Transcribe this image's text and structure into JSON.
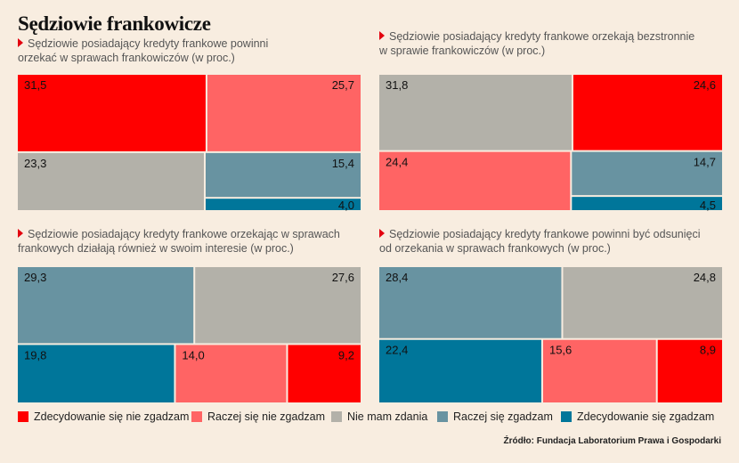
{
  "title": "Sędziowie frankowicze",
  "colors": {
    "Zdecydowanie się nie zgadzam": "#ff0000",
    "Raczej się nie zgadzam": "#ff6464",
    "Nie mam zdania": "#b3b1a9",
    "Raczej się zgadzam": "#6893a1",
    "Zdecydowanie się zgadzam": "#00769a"
  },
  "legend": [
    {
      "label": "Zdecydowanie się nie zgadzam",
      "color": "#ff0000"
    },
    {
      "label": "Raczej się nie zgadzam",
      "color": "#ff6464"
    },
    {
      "label": "Nie mam zdania",
      "color": "#b3b1a9"
    },
    {
      "label": "Raczej się zgadzam",
      "color": "#6893a1"
    },
    {
      "label": "Zdecydowanie się zgadzam",
      "color": "#00769a"
    }
  ],
  "source": "Źródło: Fundacja Laboratorium Prawa i Gospodarki",
  "chart_data": [
    {
      "type": "treemap",
      "title": "Sędziowie posiadający kredyty frankowe powinni orzekać w sprawach frankowiczów (w proc.)",
      "title_lines": [
        "Sędziowie posiadający kredyty frankowe powinni",
        "orzekać w sprawach frankowiczów (w proc.)"
      ],
      "rows": [
        [
          {
            "category": "Zdecydowanie się nie zgadzam",
            "value": 31.5,
            "label": "31,5"
          },
          {
            "category": "Raczej się nie zgadzam",
            "value": 25.7,
            "label": "25,7"
          }
        ],
        [
          {
            "category": "Nie mam zdania",
            "value": 23.3,
            "label": "23,3"
          },
          {
            "category": "Raczej się zgadzam",
            "value": 15.4,
            "label": "15,4",
            "stack": "right"
          },
          {
            "category": "Zdecydowanie się zgadzam",
            "value": 4.0,
            "label": "4,0",
            "stack": "right"
          }
        ]
      ]
    },
    {
      "type": "treemap",
      "title": "Sędziowie posiadający kredyty frankowe orzekają bezstronnie w sprawie frankowiczów (w proc.)",
      "title_lines": [
        "Sędziowie posiadający kredyty frankowe orzekają bezstronnie",
        "w sprawie frankowiczów (w proc.)"
      ],
      "rows": [
        [
          {
            "category": "Nie mam zdania",
            "value": 31.8,
            "label": "31,8"
          },
          {
            "category": "Zdecydowanie się nie zgadzam",
            "value": 24.6,
            "label": "24,6"
          }
        ],
        [
          {
            "category": "Raczej się nie zgadzam",
            "value": 24.4,
            "label": "24,4"
          },
          {
            "category": "Raczej się zgadzam",
            "value": 14.7,
            "label": "14,7",
            "stack": "right"
          },
          {
            "category": "Zdecydowanie się zgadzam",
            "value": 4.5,
            "label": "4,5",
            "stack": "right"
          }
        ]
      ]
    },
    {
      "type": "treemap",
      "title": "Sędziowie posiadający kredyty frankowe orzekając w sprawach frankowych działają również w swoim interesie (w proc.)",
      "title_lines": [
        "Sędziowie posiadający kredyty frankowe orzekając w sprawach",
        "frankowych działają również w swoim interesie (w proc.)"
      ],
      "rows": [
        [
          {
            "category": "Raczej się zgadzam",
            "value": 29.3,
            "label": "29,3"
          },
          {
            "category": "Nie mam zdania",
            "value": 27.6,
            "label": "27,6"
          }
        ],
        [
          {
            "category": "Zdecydowanie się zgadzam",
            "value": 19.8,
            "label": "19,8"
          },
          {
            "category": "Raczej się nie zgadzam",
            "value": 14.0,
            "label": "14,0"
          },
          {
            "category": "Zdecydowanie się nie zgadzam",
            "value": 9.2,
            "label": "9,2"
          }
        ]
      ]
    },
    {
      "type": "treemap",
      "title": "Sędziowie posiadający kredyty frankowe powinni być odsunięci od orzekania w sprawach frankowych (w proc.)",
      "title_lines": [
        "Sędziowie posiadający kredyty frankowe powinni być odsunięci",
        "od orzekania w sprawach frankowych (w proc.)"
      ],
      "rows": [
        [
          {
            "category": "Raczej się zgadzam",
            "value": 28.4,
            "label": "28,4"
          },
          {
            "category": "Nie mam zdania",
            "value": 24.8,
            "label": "24,8"
          }
        ],
        [
          {
            "category": "Zdecydowanie się zgadzam",
            "value": 22.4,
            "label": "22,4"
          },
          {
            "category": "Raczej się nie zgadzam",
            "value": 15.6,
            "label": "15,6"
          },
          {
            "category": "Zdecydowanie się nie zgadzam",
            "value": 8.9,
            "label": "8,9"
          }
        ]
      ]
    }
  ]
}
